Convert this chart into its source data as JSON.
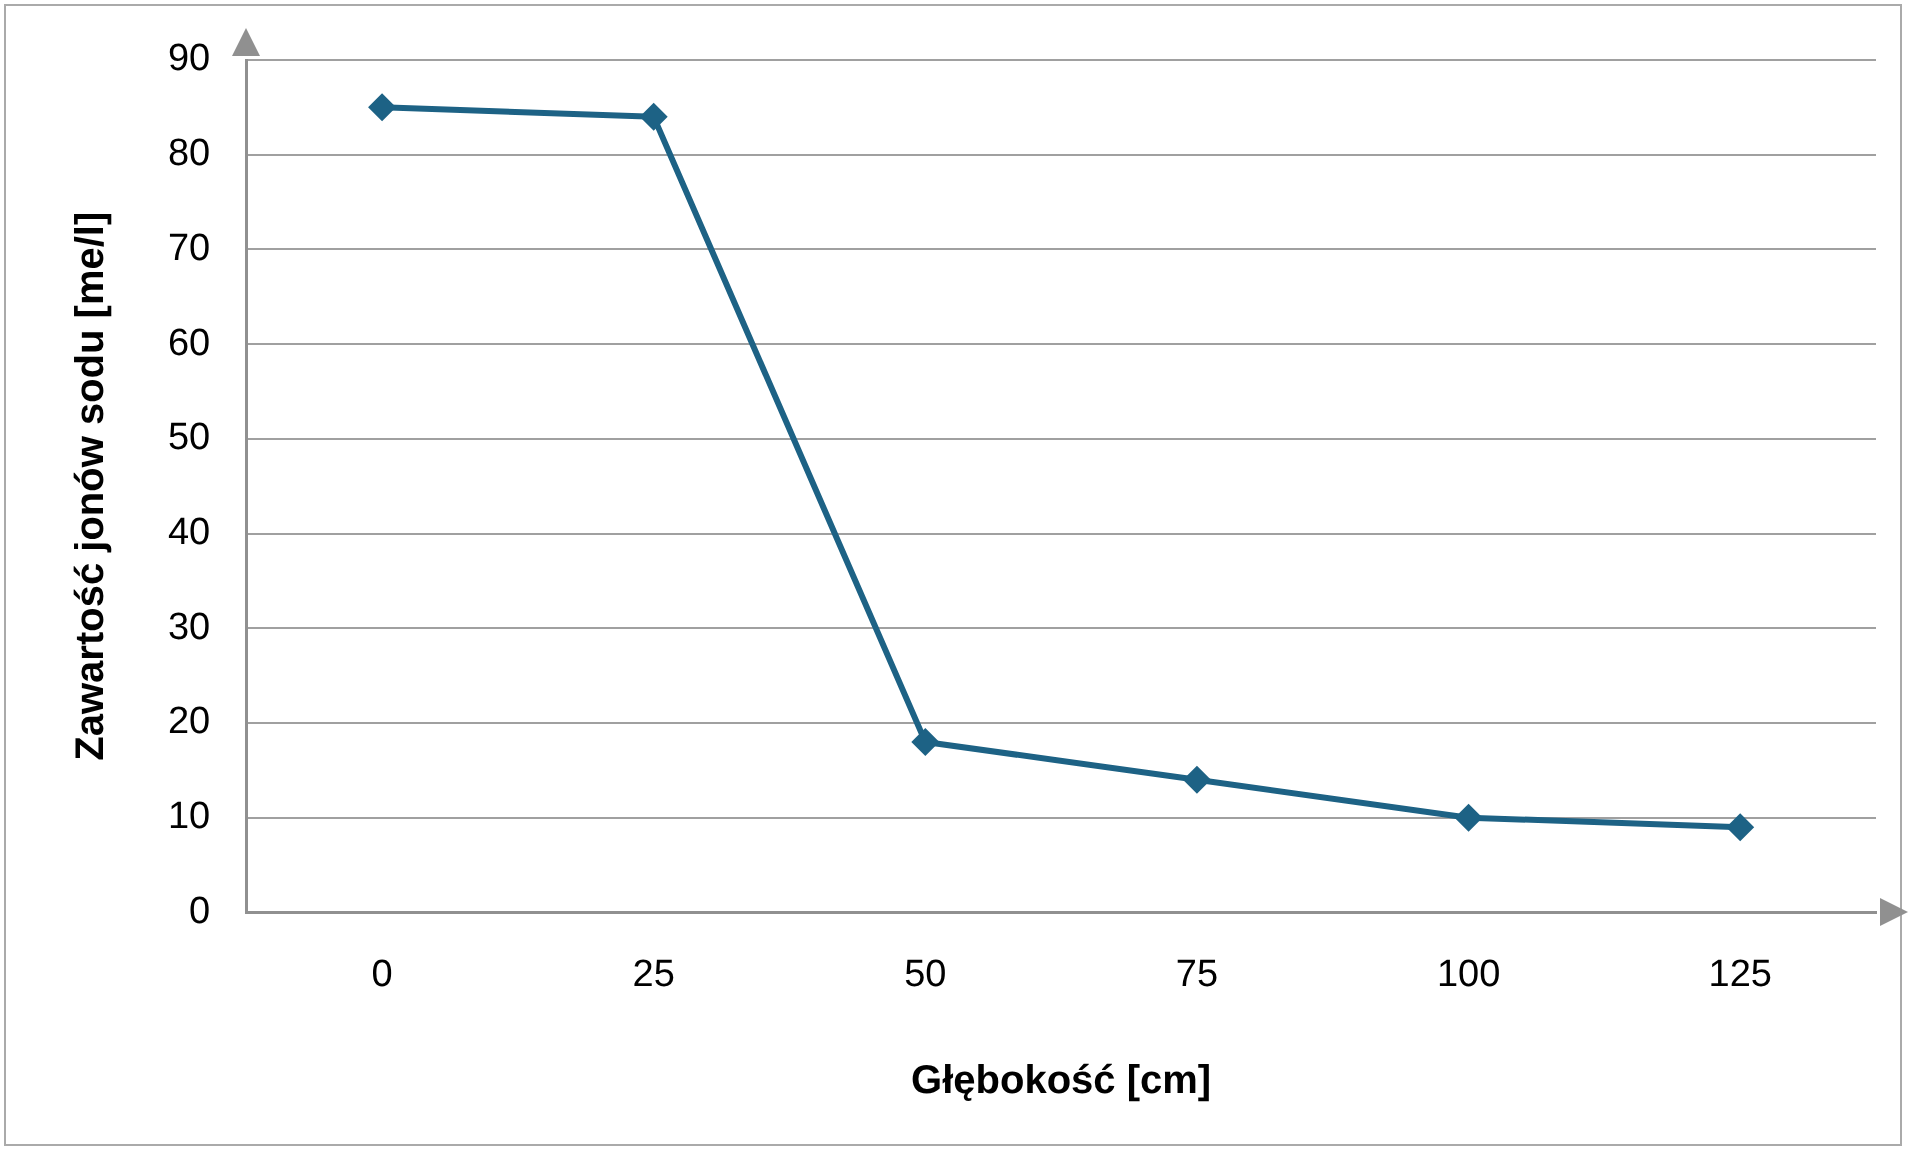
{
  "chart_data": {
    "type": "line",
    "xlabel": "Głębokość [cm]",
    "ylabel": "Zawartość jonów sodu [me/l]",
    "categories": [
      "0",
      "25",
      "50",
      "75",
      "100",
      "125"
    ],
    "series": [
      {
        "color": "#1d6285",
        "values": [
          85,
          84,
          18,
          14,
          10,
          9
        ]
      }
    ],
    "ylim": [
      0,
      90
    ],
    "yticks": [
      0,
      10,
      20,
      30,
      40,
      50,
      60,
      70,
      80,
      90
    ],
    "grid": "y",
    "legend": false,
    "marker": "diamond",
    "line_style": "solid"
  }
}
